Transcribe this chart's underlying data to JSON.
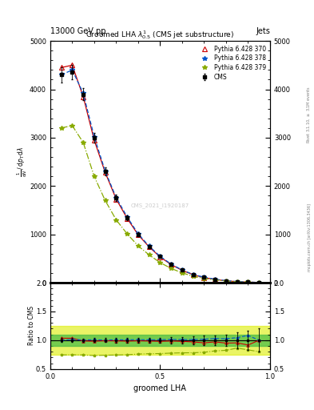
{
  "title_top": "13000 GeV pp",
  "title_right": "Jets",
  "plot_title": "Groomed LHA $\\lambda^{1}_{0.5}$ (CMS jet substructure)",
  "xlabel": "groomed LHA",
  "ylabel_ratio": "Ratio to CMS",
  "right_label_top": "Rivet 3.1.10, $\\geq$ 3.1M events",
  "right_label_bottom": "mcplots.cern.ch [arXiv:1306.3436]",
  "watermark": "CMS_2021_I1920187",
  "x_data": [
    0.05,
    0.1,
    0.15,
    0.2,
    0.25,
    0.3,
    0.35,
    0.4,
    0.45,
    0.5,
    0.55,
    0.6,
    0.65,
    0.7,
    0.75,
    0.8,
    0.85,
    0.9,
    0.95
  ],
  "y_cms": [
    4300,
    4350,
    3900,
    3000,
    2300,
    1750,
    1350,
    1000,
    750,
    540,
    380,
    260,
    170,
    110,
    70,
    40,
    22,
    12,
    5
  ],
  "y_cms_err": [
    150,
    150,
    120,
    100,
    80,
    65,
    50,
    40,
    30,
    25,
    20,
    15,
    12,
    9,
    6,
    4,
    3,
    2,
    1
  ],
  "y_py370": [
    4450,
    4500,
    3850,
    2950,
    2280,
    1730,
    1330,
    990,
    740,
    530,
    375,
    255,
    165,
    105,
    68,
    38,
    21,
    11,
    5
  ],
  "y_py378": [
    4300,
    4400,
    3920,
    3020,
    2310,
    1760,
    1360,
    1010,
    755,
    545,
    385,
    263,
    172,
    112,
    72,
    41,
    23,
    13,
    5
  ],
  "y_py379": [
    3200,
    3250,
    2900,
    2200,
    1700,
    1300,
    1010,
    760,
    575,
    415,
    295,
    203,
    133,
    87,
    57,
    33,
    19,
    10,
    4
  ],
  "color_cms": "#000000",
  "color_py370": "#cc0000",
  "color_py378": "#0055cc",
  "color_py379": "#88aa00",
  "ylim_main": [
    0,
    5000
  ],
  "ylim_ratio": [
    0.5,
    2.0
  ],
  "xlim": [
    0.0,
    1.0
  ],
  "ratio_green_band": [
    0.9,
    1.1
  ],
  "ratio_yellow_band": [
    0.75,
    1.25
  ],
  "legend_labels": [
    "CMS",
    "Pythia 6.428 370",
    "Pythia 6.428 378",
    "Pythia 6.428 379"
  ]
}
